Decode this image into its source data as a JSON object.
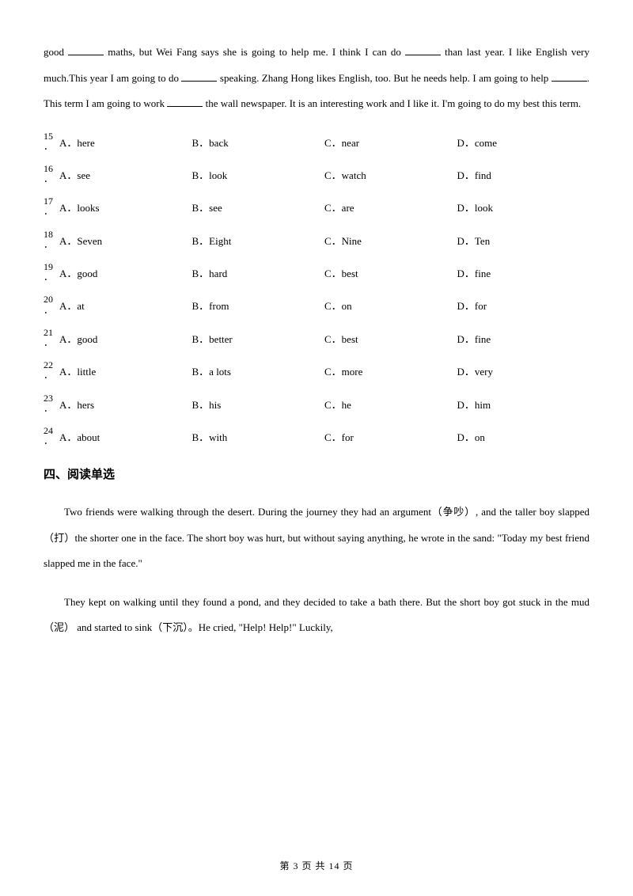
{
  "intro": {
    "part1": "good ",
    "part2": " maths, but Wei Fang says she is going to help me. I think I can do ",
    "part3": "  than last year. I like English very much.This year I am going to do ",
    "part4": " speaking. Zhang Hong likes English, too. But he needs help. I am going to help ",
    "part5": ". This term I am going to work ",
    "part6": "  the wall newspaper. It is an interesting work and I like it. I'm going to do my best this term."
  },
  "questions": [
    {
      "num": "15",
      "a": "A．here",
      "b": "B．back",
      "c": "C．near",
      "d": "D．come"
    },
    {
      "num": "16",
      "a": "A．see",
      "b": "B．look",
      "c": "C．watch",
      "d": "D．find"
    },
    {
      "num": "17",
      "a": "A．looks",
      "b": "B．see",
      "c": "C．are",
      "d": "D．look"
    },
    {
      "num": "18",
      "a": "A．Seven",
      "b": "B．Eight",
      "c": "C．Nine",
      "d": "D．Ten"
    },
    {
      "num": "19",
      "a": "A．good",
      "b": "B．hard",
      "c": "C．best",
      "d": "D．fine"
    },
    {
      "num": "20",
      "a": "A．at",
      "b": "B．from",
      "c": "C．on",
      "d": "D．for"
    },
    {
      "num": "21",
      "a": "A．good",
      "b": "B．better",
      "c": "C．best",
      "d": "D．fine"
    },
    {
      "num": "22",
      "a": "A．little",
      "b": "B．a lots",
      "c": "C．more",
      "d": "D．very"
    },
    {
      "num": "23",
      "a": "A．hers",
      "b": "B．his",
      "c": "C．he",
      "d": "D．him"
    },
    {
      "num": "24",
      "a": "A．about",
      "b": "B．with",
      "c": "C．for",
      "d": "D．on"
    }
  ],
  "section_heading": "四、阅读单选",
  "reading": {
    "p1": "Two friends were walking through the desert. During the journey they had an argument（争吵）, and the taller boy slapped （打）the shorter one in the face. The short boy was hurt, but without saying anything, he wrote in the sand: \"Today my best friend slapped me in the face.\"",
    "p2": "They kept on walking until they found a pond, and they decided to take a bath there. But the short boy got stuck in the mud（泥） and started to sink（下沉）。He cried, \"Help! Help!\" Luckily,"
  },
  "footer": "第 3 页 共 14 页"
}
